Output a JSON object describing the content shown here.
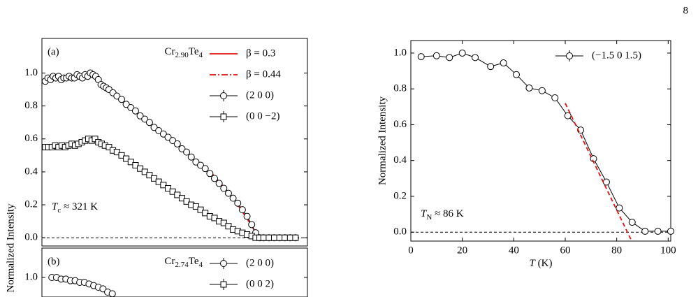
{
  "page_number": "8",
  "chart_data": [
    {
      "type": "line",
      "panel": "(a)",
      "title": [
        {
          "text": "Cr"
        },
        {
          "text": "2.90",
          "style": "sub"
        },
        {
          "text": "Te"
        },
        {
          "text": "4",
          "style": "sub"
        }
      ],
      "ylabel": "Normalized Intensity",
      "annotation": [
        {
          "text": "T",
          "style": "italic"
        },
        {
          "text": "c",
          "style": "sub"
        },
        {
          "text": " ≈ 321 K"
        }
      ],
      "xlim": [
        0,
        400
      ],
      "ylim": [
        -0.05,
        1.21
      ],
      "yticks": [
        {
          "value": 0,
          "label": "0.0"
        },
        {
          "value": 0.2,
          "label": "0.2"
        },
        {
          "value": 0.4,
          "label": "0.4"
        },
        {
          "value": 0.6,
          "label": "0.6"
        },
        {
          "value": 0.8,
          "label": "0.8"
        },
        {
          "value": 1.0,
          "label": "1.0"
        }
      ],
      "zero_line": true,
      "legend": "upper right",
      "series": [
        {
          "name": "β = 0.3",
          "color": "#e0120f",
          "marker": "none",
          "line": "solid",
          "legend_row": 0,
          "x": [
            252,
            265,
            280,
            295,
            305,
            315,
            322,
            326,
            332
          ],
          "values": [
            0.41,
            0.35,
            0.28,
            0.2,
            0.14,
            0.08,
            0.03,
            0,
            0
          ]
        },
        {
          "name": "β = 0.44",
          "color": "#e0120f",
          "marker": "none",
          "line": "dashdot",
          "legend_row": 1,
          "x": [
            255,
            270,
            285,
            300,
            315,
            325
          ],
          "values": [
            0.13,
            0.1,
            0.07,
            0.04,
            0.01,
            0
          ]
        },
        {
          "name": "(2 0 0)",
          "color": "#000000",
          "marker": "circle",
          "line": "solid",
          "legend_row": 2,
          "x": [
            5,
            9,
            13,
            17,
            21,
            25,
            29,
            33,
            37,
            41,
            45,
            49,
            53,
            57,
            61,
            65,
            69,
            73,
            77,
            81,
            85,
            89,
            93,
            97,
            101,
            107,
            113,
            120,
            127,
            134,
            141,
            148,
            155,
            162,
            169,
            176,
            183,
            190,
            197,
            204,
            211,
            218,
            225,
            232,
            239,
            246,
            253,
            260,
            267,
            274,
            281,
            288,
            295,
            302,
            309,
            316,
            322,
            328,
            334,
            342,
            350,
            358,
            366,
            374,
            382
          ],
          "values": [
            0.95,
            0.97,
            0.96,
            0.98,
            0.97,
            0.98,
            0.96,
            0.97,
            0.97,
            0.98,
            0.97,
            0.97,
            0.99,
            0.98,
            0.97,
            0.99,
            0.98,
            1.0,
            0.99,
            0.98,
            0.96,
            0.93,
            0.92,
            0.91,
            0.9,
            0.88,
            0.86,
            0.84,
            0.81,
            0.79,
            0.77,
            0.74,
            0.72,
            0.7,
            0.67,
            0.65,
            0.63,
            0.61,
            0.59,
            0.57,
            0.54,
            0.52,
            0.49,
            0.46,
            0.44,
            0.42,
            0.39,
            0.36,
            0.33,
            0.3,
            0.27,
            0.24,
            0.21,
            0.17,
            0.13,
            0.08,
            0.03,
            0,
            0,
            0,
            0,
            0,
            0,
            0,
            0
          ]
        },
        {
          "name": "(0 0 −2)",
          "color": "#000000",
          "marker": "square",
          "line": "solid",
          "legend_row": 3,
          "x": [
            5,
            10,
            15,
            20,
            25,
            30,
            35,
            40,
            45,
            50,
            55,
            60,
            65,
            70,
            75,
            80,
            85,
            90,
            95,
            101,
            107,
            113,
            120,
            127,
            134,
            141,
            148,
            155,
            162,
            169,
            176,
            183,
            190,
            197,
            204,
            211,
            218,
            225,
            232,
            239,
            246,
            253,
            260,
            267,
            274,
            281,
            288,
            295,
            302,
            309,
            316,
            322,
            328,
            334,
            342,
            350,
            358,
            366,
            374,
            382
          ],
          "values": [
            0.55,
            0.55,
            0.55,
            0.56,
            0.55,
            0.56,
            0.55,
            0.56,
            0.57,
            0.56,
            0.57,
            0.58,
            0.59,
            0.6,
            0.59,
            0.6,
            0.58,
            0.57,
            0.56,
            0.55,
            0.53,
            0.52,
            0.5,
            0.48,
            0.46,
            0.44,
            0.42,
            0.4,
            0.38,
            0.36,
            0.34,
            0.32,
            0.3,
            0.28,
            0.26,
            0.24,
            0.22,
            0.2,
            0.19,
            0.17,
            0.15,
            0.13,
            0.12,
            0.1,
            0.09,
            0.07,
            0.05,
            0.04,
            0.03,
            0.02,
            0.01,
            0,
            0,
            0,
            0,
            0,
            0,
            0,
            0,
            0
          ]
        }
      ]
    },
    {
      "type": "line",
      "panel": "(b)",
      "title": [
        {
          "text": "Cr"
        },
        {
          "text": "2.74",
          "style": "sub"
        },
        {
          "text": "Te"
        },
        {
          "text": "4",
          "style": "sub"
        }
      ],
      "xlim": [
        0,
        400
      ],
      "ylim": [
        0.88,
        1.18
      ],
      "yticks": [
        {
          "value": 1.0,
          "label": "1.0"
        }
      ],
      "legend": "upper right",
      "series": [
        {
          "name": "(2 0 0)",
          "color": "#000000",
          "marker": "circle",
          "line": "solid",
          "legend_row": 0,
          "x": [
            15,
            22,
            29,
            36,
            43,
            50,
            57,
            64,
            71,
            78,
            85,
            92,
            99,
            106
          ],
          "values": [
            1.0,
            1.0,
            0.99,
            0.99,
            0.98,
            0.98,
            0.97,
            0.97,
            0.96,
            0.95,
            0.94,
            0.93,
            0.91,
            0.9
          ]
        },
        {
          "name": "(0 0 2)",
          "color": "#000000",
          "marker": "square",
          "line": "solid",
          "legend_row": 1,
          "x": [],
          "values": []
        }
      ]
    },
    {
      "type": "line",
      "ylabel": "Normalized Intensity",
      "xlabel": [
        {
          "text": "T",
          "style": "italic"
        },
        {
          "text": " (K)"
        }
      ],
      "annotation": [
        {
          "text": "T",
          "style": "italic"
        },
        {
          "text": "N",
          "style": "sub"
        },
        {
          "text": " ≈ 86 K"
        }
      ],
      "xlim": [
        0,
        101
      ],
      "ylim": [
        -0.05,
        1.07
      ],
      "xticks": [
        0,
        20,
        40,
        60,
        80,
        100
      ],
      "yticks": [
        {
          "value": 0,
          "label": "0.0"
        },
        {
          "value": 0.2,
          "label": "0.2"
        },
        {
          "value": 0.4,
          "label": "0.4"
        },
        {
          "value": 0.6,
          "label": "0.6"
        },
        {
          "value": 0.8,
          "label": "0.8"
        },
        {
          "value": 1.0,
          "label": "1.0"
        }
      ],
      "zero_line": true,
      "legend": "upper right",
      "series": [
        {
          "name": "(−1.5 0 1.5)",
          "color": "#000000",
          "marker": "circle",
          "line": "solid",
          "legend_row": 0,
          "x": [
            4,
            10,
            15,
            20,
            25,
            31,
            36,
            41,
            46,
            51,
            56,
            61,
            66,
            71,
            76,
            81,
            86,
            91,
            96,
            101
          ],
          "values": [
            0.98,
            0.985,
            0.975,
            1.0,
            0.975,
            0.925,
            0.945,
            0.88,
            0.805,
            0.79,
            0.75,
            0.65,
            0.57,
            0.41,
            0.28,
            0.135,
            0.055,
            0.005,
            0.005,
            0.005
          ]
        },
        {
          "color": "#e0120f",
          "marker": "none",
          "line": "dashed",
          "x": [
            60,
            85.5
          ],
          "values": [
            0.72,
            -0.04
          ]
        }
      ]
    }
  ]
}
